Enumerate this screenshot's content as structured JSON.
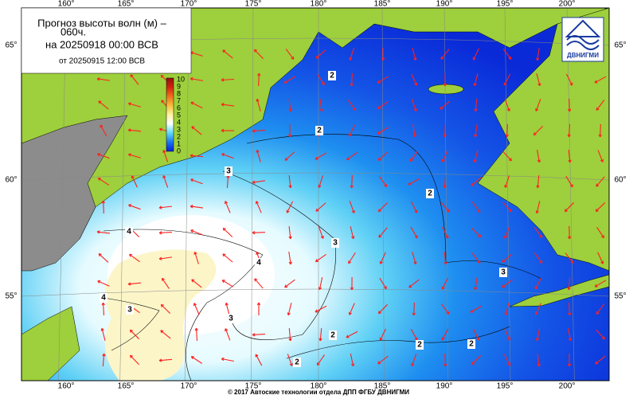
{
  "header": {
    "title_line1": "Прогноз высоты волн (м) –",
    "title_line2": "060ч.",
    "valid_time": "на 20250918 00:00 ВСВ",
    "issued": "от 20250915 12:00 ВСВ"
  },
  "legend": {
    "labels": [
      10,
      9,
      8,
      7,
      6,
      5,
      4,
      3,
      2,
      1,
      0
    ]
  },
  "longitude_labels": [
    "160°",
    "165°",
    "170°",
    "175°",
    "180°",
    "185°",
    "190°",
    "195°",
    "200°"
  ],
  "latitude_labels": [
    "65°",
    "60°",
    "55°"
  ],
  "contour_labels": [
    2,
    2,
    2,
    2,
    2,
    2,
    2,
    3,
    3,
    3,
    3,
    3,
    4,
    4,
    4
  ],
  "logo": "ДВНИГМИ",
  "footer": "© 2017 Автоские технологии отдела ДПП ФГБУ ДВНИГМИ"
}
